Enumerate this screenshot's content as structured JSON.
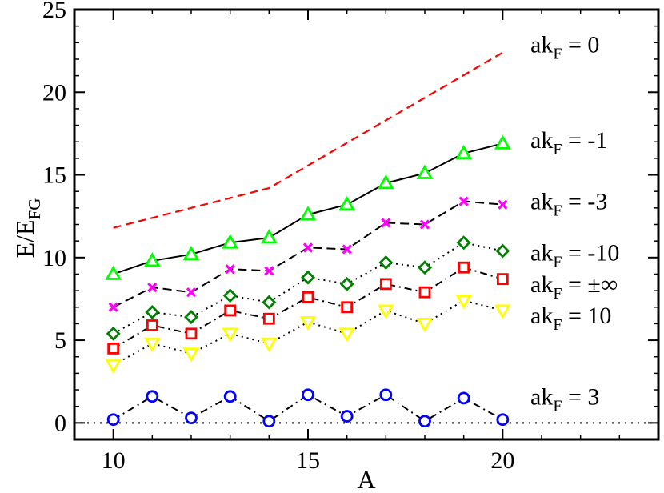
{
  "chart_data": {
    "type": "line",
    "xlabel": "A",
    "ylabel": {
      "base": "E/E",
      "sub": "FG"
    },
    "xlim": [
      9,
      24
    ],
    "ylim": [
      -1,
      25
    ],
    "xticks": [
      10,
      15,
      20
    ],
    "yticks": [
      0,
      5,
      10,
      15,
      20,
      25
    ],
    "x": [
      10,
      11,
      12,
      13,
      14,
      15,
      16,
      17,
      18,
      19,
      20
    ],
    "reference_line": {
      "y": 0,
      "style": "dotted",
      "color": "#000000"
    },
    "series": [
      {
        "name": "akF = 0",
        "label_base": "ak",
        "label_sub": "F",
        "label_rest": " = 0",
        "color": "#ff0000",
        "line": "dashed-short",
        "marker": "none",
        "x": [
          10,
          14,
          20
        ],
        "values": [
          11.8,
          14.2,
          22.4
        ],
        "label_y": 22.9
      },
      {
        "name": "akF = -1",
        "label_base": "ak",
        "label_sub": "F",
        "label_rest": " = -1",
        "color": "#00ff00",
        "line_color": "#000000",
        "line": "solid",
        "marker": "triangle-up",
        "values": [
          9.0,
          9.8,
          10.2,
          10.9,
          11.2,
          12.6,
          13.2,
          14.5,
          15.1,
          16.3,
          16.9
        ],
        "label_y": 17.1
      },
      {
        "name": "akF = -3",
        "label_base": "ak",
        "label_sub": "F",
        "label_rest": " = -3",
        "color": "#ff00ff",
        "line_color": "#000000",
        "line": "dashed",
        "marker": "x",
        "values": [
          7.0,
          8.2,
          7.9,
          9.3,
          9.2,
          10.6,
          10.5,
          12.1,
          12.0,
          13.4,
          13.2
        ],
        "label_y": 13.4
      },
      {
        "name": "akF = -10",
        "label_base": "ak",
        "label_sub": "F",
        "label_rest": " = -10",
        "color": "#008000",
        "line_color": "#000000",
        "line": "dotted",
        "marker": "diamond",
        "values": [
          5.4,
          6.7,
          6.4,
          7.7,
          7.3,
          8.8,
          8.4,
          9.7,
          9.4,
          10.9,
          10.4
        ],
        "label_y": 10.3
      },
      {
        "name": "akF = ±∞",
        "label_base": "ak",
        "label_sub": "F",
        "label_rest": " = ±∞",
        "color": "#ff0000",
        "line_color": "#000000",
        "line": "dash-dot",
        "marker": "square",
        "values": [
          4.5,
          5.9,
          5.4,
          6.8,
          6.3,
          7.6,
          7.0,
          8.4,
          7.9,
          9.4,
          8.7
        ],
        "label_y": 8.4
      },
      {
        "name": "akF = 10",
        "label_base": "ak",
        "label_sub": "F",
        "label_rest": " = 10",
        "color": "#ffff00",
        "line_color": "#000000",
        "line": "dotted",
        "marker": "triangle-down",
        "values": [
          3.5,
          4.8,
          4.2,
          5.4,
          4.8,
          6.1,
          5.4,
          6.8,
          6.0,
          7.4,
          6.8
        ],
        "label_y": 6.5
      },
      {
        "name": "akF = 3",
        "label_base": "ak",
        "label_sub": "F",
        "label_rest": " = 3",
        "color": "#0000ff",
        "line_color": "#000000",
        "line": "dash-dot",
        "marker": "circle",
        "values": [
          0.2,
          1.6,
          0.3,
          1.6,
          0.1,
          1.7,
          0.4,
          1.7,
          0.1,
          1.5,
          0.2
        ],
        "label_y": 1.6
      }
    ]
  }
}
